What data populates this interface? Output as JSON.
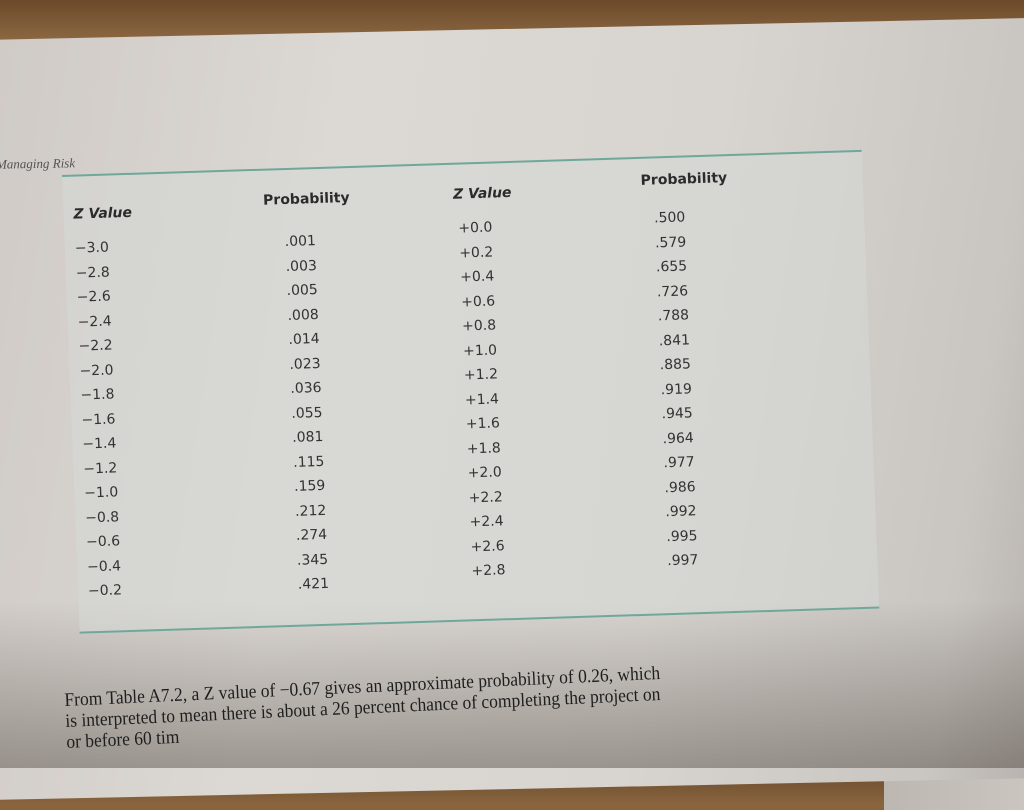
{
  "running_head": "Managing Risk",
  "table": {
    "headers": [
      "Z Value",
      "Probability",
      "Z Value",
      "Probability"
    ],
    "left_z": [
      "−3.0",
      "−2.8",
      "−2.6",
      "−2.4",
      "−2.2",
      "−2.0",
      "−1.8",
      "−1.6",
      "−1.4",
      "−1.2",
      "−1.0",
      "−0.8",
      "−0.6",
      "−0.4",
      "−0.2"
    ],
    "left_p": [
      ".001",
      ".003",
      ".005",
      ".008",
      ".014",
      ".023",
      ".036",
      ".055",
      ".081",
      ".115",
      ".159",
      ".212",
      ".274",
      ".345",
      ".421"
    ],
    "right_z": [
      "+0.0",
      "+0.2",
      "+0.4",
      "+0.6",
      "+0.8",
      "+1.0",
      "+1.2",
      "+1.4",
      "+1.6",
      "+1.8",
      "+2.0",
      "+2.2",
      "+2.4",
      "+2.6",
      "+2.8"
    ],
    "right_p": [
      ".500",
      ".579",
      ".655",
      ".726",
      ".788",
      ".841",
      ".885",
      ".919",
      ".945",
      ".964",
      ".977",
      ".986",
      ".992",
      ".995",
      ".997"
    ]
  },
  "paragraph": {
    "line1": "From Table A7.2, a Z value of −0.67 gives an approximate probability of 0.26, which",
    "line2": "is interpreted to mean there is about a 26 percent chance of completing the project on",
    "line3": "or before 60 tim"
  },
  "colors": {
    "rule": "#6fa89b",
    "table_bg": "#d6d8d6"
  }
}
